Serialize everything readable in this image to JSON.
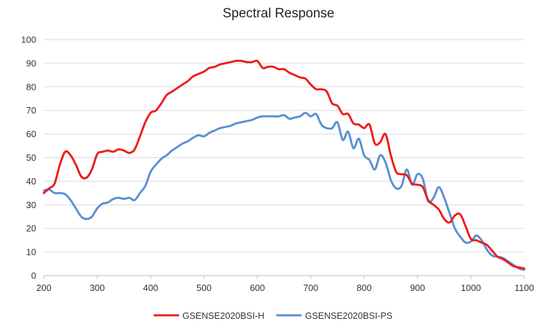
{
  "chart_data": {
    "type": "line",
    "title": "Spectral Response",
    "xlabel": "",
    "ylabel": "",
    "xlim": [
      200,
      1100
    ],
    "ylim": [
      0,
      100
    ],
    "x_ticks": [
      200,
      300,
      400,
      500,
      600,
      700,
      800,
      900,
      1000,
      1100
    ],
    "y_ticks": [
      0,
      10,
      20,
      30,
      40,
      50,
      60,
      70,
      80,
      90,
      100
    ],
    "grid": "horizontal",
    "legend": "bottom",
    "series": [
      {
        "name": "GSENSE2020BSI-H",
        "color": "#ee1c1c",
        "points": [
          [
            200,
            35
          ],
          [
            210,
            37
          ],
          [
            220,
            39
          ],
          [
            230,
            47
          ],
          [
            240,
            52.5
          ],
          [
            250,
            51
          ],
          [
            260,
            47
          ],
          [
            270,
            42
          ],
          [
            280,
            41.5
          ],
          [
            290,
            45
          ],
          [
            300,
            51.5
          ],
          [
            310,
            52.5
          ],
          [
            320,
            53
          ],
          [
            330,
            52.5
          ],
          [
            340,
            53.5
          ],
          [
            350,
            53
          ],
          [
            360,
            52
          ],
          [
            370,
            53.5
          ],
          [
            380,
            59
          ],
          [
            390,
            65
          ],
          [
            400,
            69
          ],
          [
            410,
            70
          ],
          [
            420,
            73
          ],
          [
            430,
            76.5
          ],
          [
            440,
            78
          ],
          [
            450,
            79.5
          ],
          [
            460,
            81
          ],
          [
            470,
            82.5
          ],
          [
            480,
            84.5
          ],
          [
            490,
            85.5
          ],
          [
            500,
            86.5
          ],
          [
            510,
            88
          ],
          [
            520,
            88.5
          ],
          [
            530,
            89.5
          ],
          [
            540,
            90
          ],
          [
            550,
            90.5
          ],
          [
            560,
            91
          ],
          [
            570,
            91
          ],
          [
            580,
            90.5
          ],
          [
            590,
            90.5
          ],
          [
            600,
            91
          ],
          [
            610,
            88
          ],
          [
            620,
            88.5
          ],
          [
            630,
            88.5
          ],
          [
            640,
            87.5
          ],
          [
            650,
            87.5
          ],
          [
            660,
            86
          ],
          [
            670,
            85
          ],
          [
            680,
            84
          ],
          [
            690,
            83.5
          ],
          [
            700,
            81
          ],
          [
            710,
            79
          ],
          [
            720,
            79
          ],
          [
            730,
            78
          ],
          [
            740,
            73
          ],
          [
            750,
            72
          ],
          [
            760,
            68.5
          ],
          [
            770,
            68.5
          ],
          [
            780,
            64.5
          ],
          [
            790,
            64
          ],
          [
            800,
            62.5
          ],
          [
            810,
            64
          ],
          [
            820,
            56
          ],
          [
            830,
            56.5
          ],
          [
            840,
            60
          ],
          [
            850,
            51
          ],
          [
            860,
            44
          ],
          [
            870,
            43
          ],
          [
            880,
            42.5
          ],
          [
            890,
            39
          ],
          [
            900,
            38.5
          ],
          [
            910,
            37.5
          ],
          [
            920,
            32
          ],
          [
            930,
            30
          ],
          [
            940,
            28
          ],
          [
            950,
            24
          ],
          [
            960,
            22.5
          ],
          [
            970,
            25.5
          ],
          [
            980,
            26
          ],
          [
            990,
            21
          ],
          [
            1000,
            15.5
          ],
          [
            1010,
            15
          ],
          [
            1020,
            14
          ],
          [
            1030,
            13
          ],
          [
            1040,
            10.5
          ],
          [
            1050,
            8
          ],
          [
            1060,
            7
          ],
          [
            1070,
            5.5
          ],
          [
            1080,
            4
          ],
          [
            1090,
            3.5
          ],
          [
            1100,
            3
          ]
        ]
      },
      {
        "name": "GSENSE2020BSI-PS",
        "color": "#5b8fd4",
        "points": [
          [
            200,
            36
          ],
          [
            210,
            36.5
          ],
          [
            220,
            35
          ],
          [
            230,
            35
          ],
          [
            240,
            34.5
          ],
          [
            250,
            32
          ],
          [
            260,
            28.5
          ],
          [
            270,
            25
          ],
          [
            280,
            24
          ],
          [
            290,
            25
          ],
          [
            300,
            28.5
          ],
          [
            310,
            30.5
          ],
          [
            320,
            31
          ],
          [
            330,
            32.5
          ],
          [
            340,
            33
          ],
          [
            350,
            32.5
          ],
          [
            360,
            33
          ],
          [
            370,
            32
          ],
          [
            380,
            35
          ],
          [
            390,
            38
          ],
          [
            400,
            44
          ],
          [
            410,
            47
          ],
          [
            420,
            49.5
          ],
          [
            430,
            51
          ],
          [
            440,
            53
          ],
          [
            450,
            54.5
          ],
          [
            460,
            56
          ],
          [
            470,
            57
          ],
          [
            480,
            58.5
          ],
          [
            490,
            59.5
          ],
          [
            500,
            59
          ],
          [
            510,
            60.5
          ],
          [
            520,
            61.5
          ],
          [
            530,
            62.5
          ],
          [
            540,
            63
          ],
          [
            550,
            63.5
          ],
          [
            560,
            64.5
          ],
          [
            570,
            65
          ],
          [
            580,
            65.5
          ],
          [
            590,
            66
          ],
          [
            600,
            67
          ],
          [
            610,
            67.5
          ],
          [
            620,
            67.5
          ],
          [
            630,
            67.5
          ],
          [
            640,
            67.5
          ],
          [
            650,
            68
          ],
          [
            660,
            66.5
          ],
          [
            670,
            67
          ],
          [
            680,
            67.5
          ],
          [
            690,
            69
          ],
          [
            700,
            67.5
          ],
          [
            710,
            68.5
          ],
          [
            720,
            64
          ],
          [
            730,
            62.5
          ],
          [
            740,
            62.5
          ],
          [
            750,
            65
          ],
          [
            760,
            57.5
          ],
          [
            770,
            61
          ],
          [
            780,
            54
          ],
          [
            790,
            58
          ],
          [
            800,
            51
          ],
          [
            810,
            49
          ],
          [
            820,
            45
          ],
          [
            830,
            51
          ],
          [
            840,
            48
          ],
          [
            850,
            40.5
          ],
          [
            860,
            37
          ],
          [
            870,
            38
          ],
          [
            880,
            45
          ],
          [
            890,
            38.5
          ],
          [
            900,
            43
          ],
          [
            910,
            41
          ],
          [
            920,
            31.5
          ],
          [
            930,
            33
          ],
          [
            940,
            37.5
          ],
          [
            950,
            33
          ],
          [
            960,
            26.5
          ],
          [
            970,
            20
          ],
          [
            980,
            16.5
          ],
          [
            990,
            14
          ],
          [
            1000,
            14.5
          ],
          [
            1010,
            17
          ],
          [
            1020,
            15
          ],
          [
            1030,
            11
          ],
          [
            1040,
            8.5
          ],
          [
            1050,
            8
          ],
          [
            1060,
            7.5
          ],
          [
            1070,
            6
          ],
          [
            1080,
            4.5
          ],
          [
            1090,
            3
          ],
          [
            1100,
            2.5
          ]
        ]
      }
    ]
  }
}
